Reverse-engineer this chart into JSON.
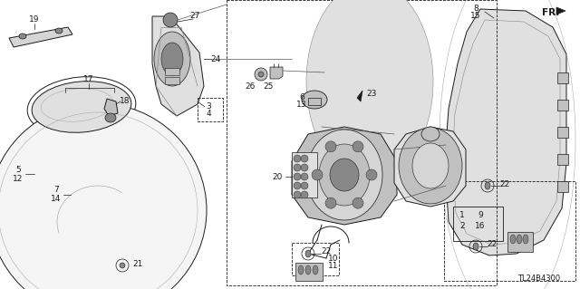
{
  "background_color": "#ffffff",
  "diagram_id": "TL24B4300",
  "fr_label": "FR.",
  "fig_width": 6.4,
  "fig_height": 3.19,
  "dpi": 100,
  "line_color": "#1a1a1a",
  "label_fontsize": 6.5,
  "lw": 0.7,
  "gray_light": "#e0e0e0",
  "gray_mid": "#c0c0c0",
  "gray_dark": "#888888",
  "gray_fill": "#d5d5d5"
}
